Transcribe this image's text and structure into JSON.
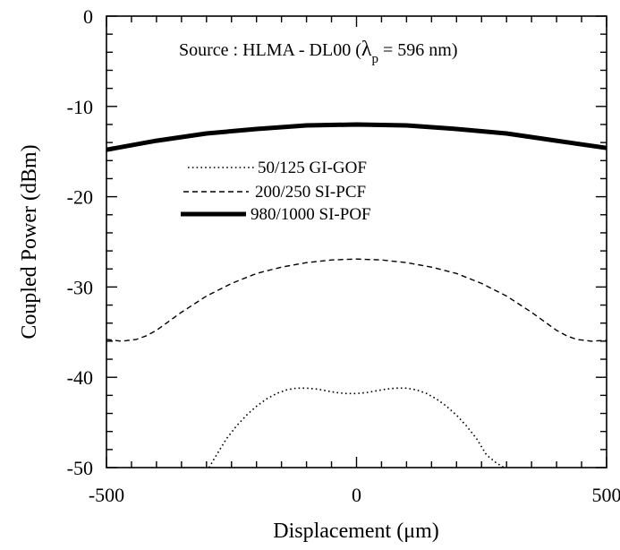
{
  "chart_data": {
    "type": "line",
    "title": "",
    "annotation": {
      "prefix": "Source : HLMA - DL00  (",
      "lambda": "λ",
      "subscript": "p",
      "suffix": " = 596 nm)"
    },
    "xlabel": "Displacement  (μm)",
    "ylabel": "Coupled Power   (dBm)",
    "xlim": [
      -500,
      500
    ],
    "ylim": [
      -50,
      0
    ],
    "x_ticks": [
      -500,
      0,
      500
    ],
    "y_ticks": [
      0,
      -10,
      -20,
      -30,
      -40,
      -50
    ],
    "legend_position": "center-left",
    "series": [
      {
        "name": "50/125 GI-GOF",
        "style": "dotted",
        "color": "#000000",
        "x": [
          -295,
          -280,
          -260,
          -240,
          -220,
          -200,
          -180,
          -160,
          -140,
          -120,
          -100,
          -80,
          -60,
          -40,
          -20,
          0,
          20,
          40,
          60,
          80,
          100,
          120,
          140,
          160,
          180,
          200,
          220,
          240,
          260,
          280,
          295
        ],
        "y": [
          -50,
          -48.6,
          -46.8,
          -45.4,
          -44.2,
          -43.2,
          -42.4,
          -41.8,
          -41.4,
          -41.2,
          -41.2,
          -41.3,
          -41.5,
          -41.7,
          -41.8,
          -41.8,
          -41.7,
          -41.5,
          -41.3,
          -41.2,
          -41.2,
          -41.4,
          -41.8,
          -42.4,
          -43.2,
          -44.2,
          -45.4,
          -46.8,
          -48.6,
          -49.5,
          -50
        ]
      },
      {
        "name": "200/250 SI-PCF",
        "style": "dashed",
        "color": "#000000",
        "x": [
          -500,
          -470,
          -440,
          -420,
          -400,
          -380,
          -350,
          -300,
          -250,
          -200,
          -150,
          -100,
          -50,
          0,
          50,
          100,
          150,
          200,
          250,
          300,
          350,
          380,
          400,
          420,
          440,
          470,
          500
        ],
        "y": [
          -35.8,
          -36.0,
          -35.8,
          -35.4,
          -34.8,
          -34.0,
          -32.8,
          -31.0,
          -29.6,
          -28.5,
          -27.8,
          -27.3,
          -27.0,
          -26.9,
          -27.0,
          -27.3,
          -27.8,
          -28.5,
          -29.6,
          -31.0,
          -32.8,
          -34.0,
          -34.8,
          -35.4,
          -35.8,
          -36.0,
          -35.9
        ]
      },
      {
        "name": "980/1000 SI-POF",
        "style": "solid-thick",
        "color": "#000000",
        "x": [
          -500,
          -400,
          -300,
          -200,
          -100,
          0,
          100,
          200,
          300,
          400,
          500
        ],
        "y": [
          -14.8,
          -13.8,
          -13.0,
          -12.5,
          -12.1,
          -12.0,
          -12.1,
          -12.5,
          -13.0,
          -13.8,
          -14.6
        ]
      }
    ]
  }
}
